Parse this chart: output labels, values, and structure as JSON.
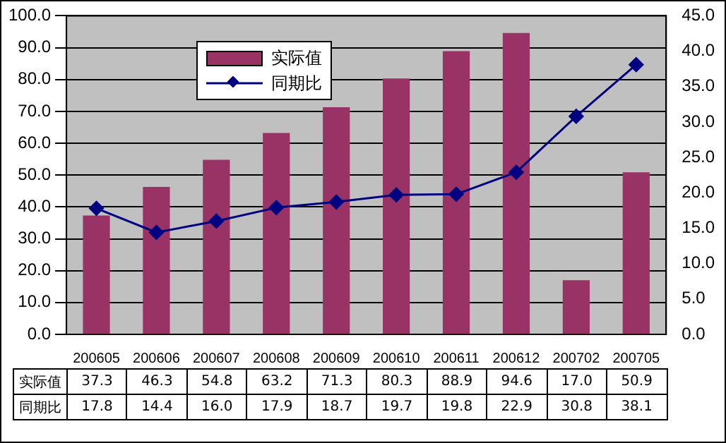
{
  "chart_data": {
    "type": "bar",
    "categories": [
      "200605",
      "200606",
      "200607",
      "200608",
      "200609",
      "200610",
      "200611",
      "200612",
      "200702",
      "200705"
    ],
    "series": [
      {
        "name": "实际值",
        "color": "#993366",
        "values": [
          37.3,
          46.3,
          54.8,
          63.2,
          71.3,
          80.3,
          88.9,
          94.6,
          17.0,
          50.9
        ],
        "value_labels": [
          "37.3",
          "46.3",
          "54.8",
          "63.2",
          "71.3",
          "80.3",
          "88.9",
          "94.6",
          "17.0",
          "50.9"
        ]
      },
      {
        "name": "同期比",
        "type": "line",
        "axis": "y2",
        "color": "#000080",
        "marker": "diamond",
        "values": [
          17.8,
          14.4,
          16.0,
          17.9,
          18.7,
          19.7,
          19.8,
          22.9,
          30.8,
          38.1
        ],
        "value_labels": [
          "17.8",
          "14.4",
          "16.0",
          "17.9",
          "18.7",
          "19.7",
          "19.8",
          "22.9",
          "30.8",
          "38.1"
        ]
      }
    ],
    "ylim": [
      0,
      100
    ],
    "yticks": [
      {
        "value": 0,
        "label": "0.0"
      },
      {
        "value": 10,
        "label": "10.0"
      },
      {
        "value": 20,
        "label": "20.0"
      },
      {
        "value": 30,
        "label": "30.0"
      },
      {
        "value": 40,
        "label": "40.0"
      },
      {
        "value": 50,
        "label": "50.0"
      },
      {
        "value": 60,
        "label": "60.0"
      },
      {
        "value": 70,
        "label": "70.0"
      },
      {
        "value": 80,
        "label": "80.0"
      },
      {
        "value": 90,
        "label": "90.0"
      },
      {
        "value": 100,
        "label": "100.0"
      }
    ],
    "y2lim": [
      0,
      45
    ],
    "y2ticks": [
      {
        "value": 0,
        "label": "0.0"
      },
      {
        "value": 5,
        "label": "5.0"
      },
      {
        "value": 10,
        "label": "10.0"
      },
      {
        "value": 15,
        "label": "15.0"
      },
      {
        "value": 20,
        "label": "20.0"
      },
      {
        "value": 25,
        "label": "25.0"
      },
      {
        "value": 30,
        "label": "30.0"
      },
      {
        "value": 35,
        "label": "35.0"
      },
      {
        "value": 40,
        "label": "40.0"
      },
      {
        "value": 45,
        "label": "45.0"
      }
    ],
    "grid": "y",
    "legend": "top left"
  }
}
